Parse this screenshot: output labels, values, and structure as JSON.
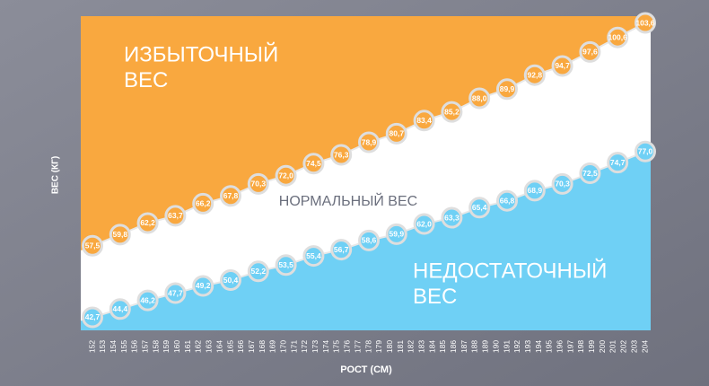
{
  "chart_data": {
    "type": "line",
    "x_label": "РОСТ (СМ)",
    "y_label": "ВЕС (КГ)",
    "x": [
      152,
      154.6,
      157.2,
      159.8,
      162.4,
      165,
      167.6,
      170.2,
      172.8,
      175.4,
      178,
      180.6,
      183.2,
      185.8,
      188.4,
      191,
      193.6,
      196.2,
      198.8,
      201.4,
      204
    ],
    "series": [
      {
        "color": "#f9a83f",
        "values": [
          57.5,
          59.8,
          62.2,
          63.7,
          66.2,
          67.8,
          70.3,
          72.0,
          74.5,
          76.3,
          78.9,
          80.7,
          83.4,
          85.2,
          88.0,
          89.9,
          92.8,
          94.7,
          97.6,
          100.6,
          103.6
        ],
        "value_labels": [
          "57,5",
          "59,8",
          "62,2",
          "63,7",
          "66,2",
          "67,8",
          "70,3",
          "72,0",
          "74,5",
          "76,3",
          "78,9",
          "80,7",
          "83,4",
          "85,2",
          "88,0",
          "89,9",
          "92,8",
          "94,7",
          "97,6",
          "100,6",
          "103,6"
        ]
      },
      {
        "color": "#6fd0f5",
        "values": [
          42.7,
          44.4,
          46.2,
          47.7,
          49.2,
          50.4,
          52.2,
          53.5,
          55.4,
          56.7,
          58.6,
          59.9,
          62.0,
          63.3,
          65.4,
          66.8,
          68.9,
          70.3,
          72.5,
          74.7,
          77.0
        ],
        "value_labels": [
          "42,7",
          "44,4",
          "46,2",
          "47,7",
          "49,2",
          "50,4",
          "52,2",
          "53,5",
          "55,4",
          "56,7",
          "58,6",
          "59,9",
          "62,0",
          "63,3",
          "65,4",
          "66,8",
          "68,9",
          "70,3",
          "72,5",
          "74,7",
          "77,0"
        ]
      }
    ],
    "annotations": [
      {
        "lines": [
          "ИЗБЫТОЧНЫЙ",
          "ВЕС"
        ]
      },
      {
        "lines": [
          "НОРМАЛЬНЫЙ ВЕС"
        ]
      },
      {
        "lines": [
          "НЕДОСТАТОЧНЫЙ",
          "ВЕС"
        ]
      }
    ],
    "xlim": [
      152,
      204
    ],
    "xticks": [
      152,
      153,
      154,
      155,
      156,
      157,
      158,
      159,
      160,
      161,
      162,
      163,
      164,
      165,
      166,
      167,
      168,
      169,
      170,
      171,
      172,
      173,
      174,
      175,
      176,
      177,
      178,
      179,
      180,
      181,
      182,
      183,
      184,
      185,
      186,
      187,
      188,
      189,
      190,
      191,
      192,
      193,
      194,
      195,
      196,
      197,
      198,
      199,
      200,
      201,
      202,
      203,
      204
    ],
    "ylim": [
      40,
      105
    ]
  }
}
